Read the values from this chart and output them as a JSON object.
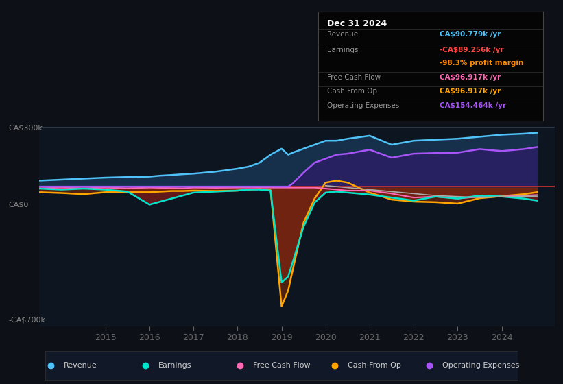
{
  "bg_color": "#0d1117",
  "chart_bg": "#0d1520",
  "zero_line_color": "#cc3333",
  "tooltip_title": "Dec 31 2024",
  "ylabel_top": "CA$300k",
  "ylabel_zero": "CA$0",
  "ylabel_bottom": "-CA$700k",
  "legend_items": [
    {
      "label": "Revenue",
      "color": "#4fc3f7"
    },
    {
      "label": "Earnings",
      "color": "#00e5cc"
    },
    {
      "label": "Free Cash Flow",
      "color": "#ff69b4"
    },
    {
      "label": "Cash From Op",
      "color": "#ffa500"
    },
    {
      "label": "Operating Expenses",
      "color": "#a855f7"
    }
  ],
  "tooltip_rows": [
    {
      "label": "Revenue",
      "value": "CA$90.779k /yr",
      "value_color": "#4fc3f7"
    },
    {
      "label": "Earnings",
      "value": "-CA$89.256k /yr",
      "value_color": "#ff4444"
    },
    {
      "label": "",
      "value": "-98.3% profit margin",
      "value_color": "#ff8c00"
    },
    {
      "label": "Free Cash Flow",
      "value": "CA$96.917k /yr",
      "value_color": "#ff69b4"
    },
    {
      "label": "Cash From Op",
      "value": "CA$96.917k /yr",
      "value_color": "#ffa500"
    },
    {
      "label": "Operating Expenses",
      "value": "CA$154.464k /yr",
      "value_color": "#a855f7"
    }
  ],
  "xmin": 2013.5,
  "xmax": 2025.2,
  "ymin": -700,
  "ymax": 300,
  "xticks": [
    2015,
    2016,
    2017,
    2018,
    2019,
    2020,
    2021,
    2022,
    2023,
    2024
  ]
}
